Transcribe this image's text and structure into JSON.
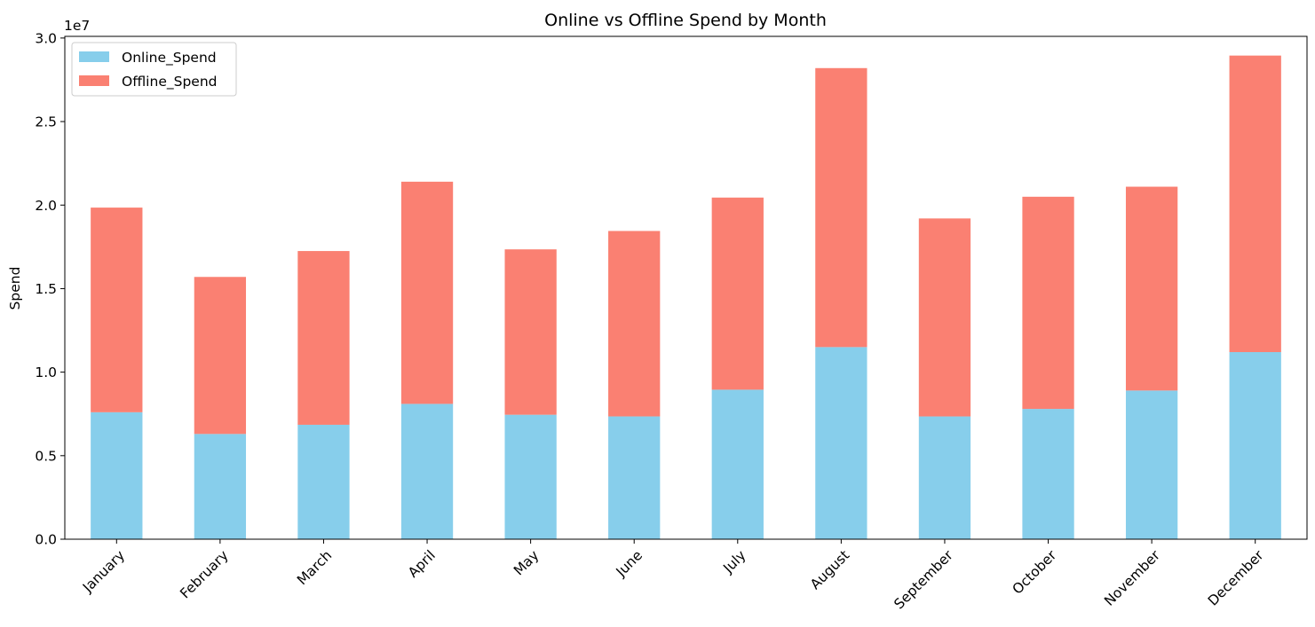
{
  "chart_data": {
    "type": "bar",
    "stacked": true,
    "title": "Online vs Offline Spend by Month",
    "xlabel": "",
    "ylabel": "Spend",
    "y_offset_label": "1e7",
    "ylim": [
      0,
      30100000
    ],
    "yticks": [
      0,
      5000000,
      10000000,
      15000000,
      20000000,
      25000000,
      30000000
    ],
    "ytick_labels": [
      "0.0",
      "0.5",
      "1.0",
      "1.5",
      "2.0",
      "2.5",
      "3.0"
    ],
    "grid": false,
    "legend_position": "top-left",
    "categories": [
      "January",
      "February",
      "March",
      "April",
      "May",
      "June",
      "July",
      "August",
      "September",
      "October",
      "November",
      "December"
    ],
    "series": [
      {
        "name": "Online_Spend",
        "color": "#87ceeb",
        "values": [
          7600000,
          6300000,
          6850000,
          8100000,
          7450000,
          7350000,
          8950000,
          11500000,
          7350000,
          7800000,
          8900000,
          11200000
        ]
      },
      {
        "name": "Offline_Spend",
        "color": "#fa8072",
        "values": [
          12250000,
          9400000,
          10400000,
          13300000,
          9900000,
          11100000,
          11500000,
          16700000,
          11850000,
          12700000,
          12200000,
          17750000
        ]
      }
    ]
  }
}
